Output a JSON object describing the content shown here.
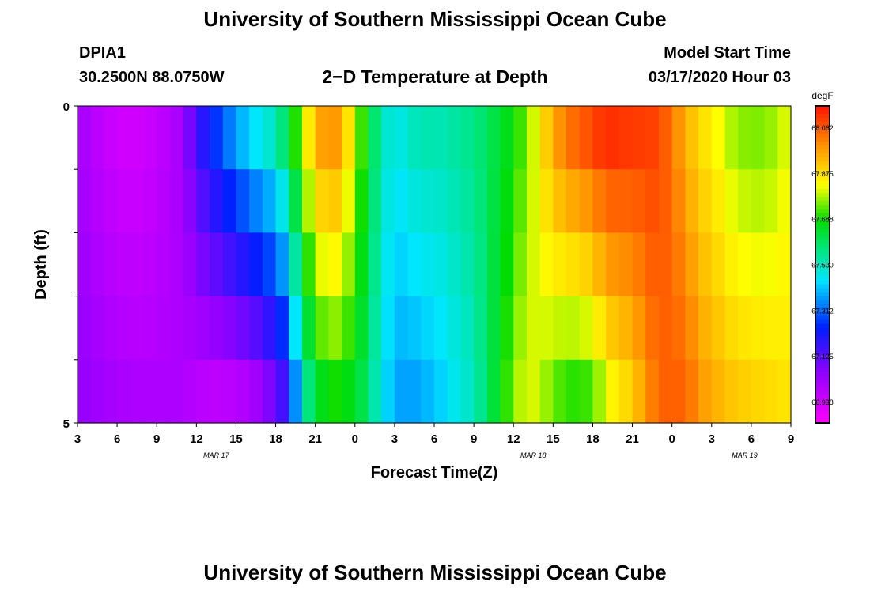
{
  "header": {
    "title": "University of Southern Mississippi Ocean Cube",
    "station": "DPIA1",
    "coordinates": "30.2500N 88.0750W",
    "plot_title": "2−D Temperature at Depth",
    "start_label": "Model Start Time",
    "start_time": "03/17/2020 Hour 03"
  },
  "footer": {
    "title": "University of Southern Mississippi Ocean Cube"
  },
  "chart_data": {
    "type": "heatmap",
    "title": "2−D Temperature at Depth",
    "xlabel": "Forecast Time(Z)",
    "ylabel": "Depth (ft)",
    "x_hours": [
      3,
      4,
      5,
      6,
      7,
      8,
      9,
      10,
      11,
      12,
      13,
      14,
      15,
      16,
      17,
      18,
      19,
      20,
      21,
      22,
      23,
      24,
      25,
      26,
      27,
      28,
      29,
      30,
      31,
      32,
      33,
      34,
      35,
      36,
      37,
      38,
      39,
      40,
      41,
      42,
      43,
      44,
      45,
      46,
      47,
      48,
      49,
      50,
      51,
      52,
      53,
      54,
      55,
      56,
      57
    ],
    "xlim": [
      3,
      57
    ],
    "x_tick_labels": [
      "3",
      "6",
      "9",
      "12",
      "15",
      "18",
      "21",
      "0",
      "3",
      "6",
      "9",
      "12",
      "15",
      "18",
      "21",
      "0",
      "3",
      "6",
      "9"
    ],
    "date_labels": [
      "MAR 17",
      "MAR 18",
      "MAR 19"
    ],
    "y_tick_labels": [
      "0",
      "5"
    ],
    "ylim": [
      0,
      5
    ],
    "depth_rows": [
      0,
      1,
      2,
      3,
      4,
      5
    ],
    "colorbar": {
      "unit": "degF",
      "tick_labels": [
        "68.062",
        "67.875",
        "67.688",
        "67.500",
        "67.312",
        "67.125",
        "66.938"
      ],
      "range": [
        66.85,
        68.15
      ]
    },
    "temperature_profile": {
      "hours": [
        3,
        5,
        7,
        9,
        11,
        12,
        14,
        16,
        18,
        19,
        20,
        21,
        22,
        23,
        24,
        25,
        26,
        27,
        28,
        29,
        30,
        33,
        36,
        37,
        39,
        40,
        42,
        43,
        45,
        47,
        49,
        50,
        51,
        52,
        53,
        55,
        57
      ],
      "surface_degF": [
        67.02,
        66.96,
        66.93,
        66.96,
        67.02,
        67.15,
        67.3,
        67.42,
        67.5,
        67.62,
        67.78,
        67.93,
        68.0,
        67.95,
        67.78,
        67.65,
        67.5,
        67.45,
        67.48,
        67.52,
        67.5,
        67.55,
        67.68,
        67.75,
        67.95,
        68.02,
        68.08,
        68.12,
        68.1,
        68.09,
        67.95,
        67.88,
        67.85,
        67.8,
        67.76,
        67.75,
        67.82
      ],
      "bottom_degF": [
        67.05,
        67.02,
        67.0,
        67.0,
        67.0,
        66.98,
        66.97,
        67.0,
        67.1,
        67.2,
        67.5,
        67.62,
        67.7,
        67.68,
        67.65,
        67.58,
        67.45,
        67.38,
        67.36,
        67.38,
        67.4,
        67.5,
        67.75,
        67.82,
        67.75,
        67.7,
        67.72,
        67.82,
        67.9,
        68.05,
        68.05,
        67.98,
        67.95,
        67.92,
        67.9,
        67.88,
        67.86
      ]
    }
  }
}
